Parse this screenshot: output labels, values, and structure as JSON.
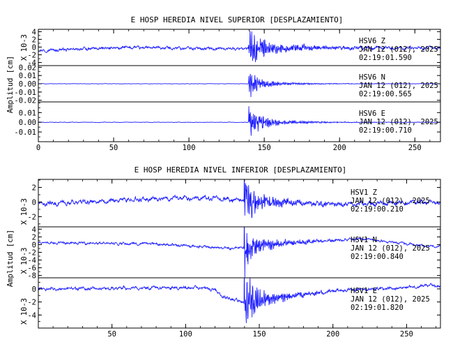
{
  "colors": {
    "trace": "#1f1fff",
    "axis": "#000000",
    "background": "#ffffff"
  },
  "chart_data": [
    {
      "type": "line",
      "title": "E HOSP HEREDIA NIVEL SUPERIOR [DESPLAZAMIENTO]",
      "ylabel": "Amplitud [cm]",
      "x_ticks": [
        0,
        50,
        100,
        150,
        200,
        250
      ],
      "x_range": [
        0,
        267
      ],
      "panels": [
        {
          "name": "Z",
          "scale_label": "X 10-3",
          "ylim": [
            -4.8,
            4.6
          ],
          "y_ticks": [
            4,
            2,
            0,
            -2,
            -4
          ],
          "y_tick_labels": [
            "4",
            "2",
            "0",
            "-2",
            "-4"
          ],
          "info": [
            "HSV6   Z",
            "JAN 12 (012), 2025",
            "02:19:01.590"
          ],
          "trace": {
            "baseline": -0.3,
            "noise": 0.55,
            "peak": 3.8,
            "onset": 139.5,
            "decay": 5,
            "coda": 0.7,
            "coda_decay": 30,
            "drift": [
              [
                0,
                -0.6
              ],
              [
                60,
                0.2
              ],
              [
                120,
                -0.1
              ],
              [
                200,
                0.1
              ],
              [
                267,
                0.1
              ]
            ]
          }
        },
        {
          "name": "N",
          "scale_label": "",
          "ylim": [
            -0.022,
            0.022
          ],
          "y_ticks": [
            0.02,
            0.01,
            0.0,
            -0.01,
            -0.02
          ],
          "y_tick_labels": [
            "0.02",
            "0.01",
            "0.00",
            "-0.01",
            "-0.02"
          ],
          "info": [
            "HSV6   N",
            "JAN 12 (012), 2025",
            "02:19:00.565"
          ],
          "trace": {
            "baseline": 0.0,
            "noise": 0.0004,
            "peak": 0.018,
            "onset": 139.5,
            "decay": 6,
            "coda": 0.2,
            "coda_decay": 30,
            "drift": [
              [
                0,
                0
              ],
              [
                267,
                0
              ]
            ]
          }
        },
        {
          "name": "E",
          "scale_label": "",
          "ylim": [
            -0.02,
            0.021
          ],
          "y_ticks": [
            0.01,
            0.0,
            -0.01
          ],
          "y_tick_labels": [
            "0.01",
            "0.00",
            "-0.01"
          ],
          "info": [
            "HSV6   E",
            "JAN 12 (012), 2025",
            "02:19:00.710"
          ],
          "trace": {
            "baseline": 0.0,
            "noise": 0.0004,
            "peak": 0.017,
            "onset": 139.5,
            "decay": 7,
            "coda": 0.25,
            "coda_decay": 30,
            "drift": [
              [
                0,
                0
              ],
              [
                267,
                0
              ]
            ]
          }
        }
      ]
    },
    {
      "type": "line",
      "title": "E HOSP HEREDIA NIVEL INFERIOR [DESPLAZAMIENTO]",
      "ylabel": "Amplitud [cm]",
      "x_ticks": [
        50,
        100,
        150,
        200,
        250
      ],
      "x_range": [
        0,
        273
      ],
      "panels": [
        {
          "name": "Z",
          "scale_label": "X 10-3",
          "ylim": [
            -3.4,
            3.1
          ],
          "y_ticks": [
            2,
            0,
            -2
          ],
          "y_tick_labels": [
            "2",
            "0",
            "-2"
          ],
          "info": [
            "HSV1   Z",
            "JAN 12 (012), 2025",
            "02:19:00.210"
          ],
          "trace": {
            "baseline": 0.0,
            "noise": 0.45,
            "peak": 3.0,
            "onset": 139.5,
            "decay": 5,
            "coda": 0.5,
            "coda_decay": 25,
            "drift": [
              [
                0,
                -0.3
              ],
              [
                60,
                0.3
              ],
              [
                110,
                0.6
              ],
              [
                140,
                0.2
              ],
              [
                200,
                -0.3
              ],
              [
                273,
                0
              ]
            ]
          }
        },
        {
          "name": "N",
          "scale_label": "X 10-3",
          "ylim": [
            -8.6,
            4.6
          ],
          "y_ticks": [
            4,
            2,
            0,
            -2,
            -4,
            -6,
            -8
          ],
          "y_tick_labels": [
            "4",
            "2",
            "0",
            "-2",
            "-4",
            "-6",
            "-8"
          ],
          "info": [
            "HSV1   N",
            "JAN 12 (012), 2025",
            "02:19:00.840"
          ],
          "trace": {
            "baseline": 0.0,
            "noise": 0.5,
            "peak": 7.5,
            "onset": 139.5,
            "decay": 3,
            "coda": 0.35,
            "coda_decay": 25,
            "drift": [
              [
                0,
                0.5
              ],
              [
                80,
                0.2
              ],
              [
                130,
                -1.0
              ],
              [
                170,
                0.5
              ],
              [
                220,
                1.5
              ],
              [
                267,
                -0.5
              ],
              [
                273,
                -0.3
              ]
            ]
          }
        },
        {
          "name": "E",
          "scale_label": "X 10-3",
          "ylim": [
            -6.0,
            1.7
          ],
          "y_ticks": [
            0,
            -2,
            -4
          ],
          "y_tick_labels": [
            "0",
            "-2",
            "-4"
          ],
          "info": [
            "HSV1   E",
            "JAN 12 (012), 2025",
            "02:19:01.820"
          ],
          "trace": {
            "baseline": 0.0,
            "noise": 0.35,
            "peak": 5.0,
            "onset": 139.5,
            "decay": 4,
            "coda": 0.5,
            "coda_decay": 20,
            "drift": [
              [
                0,
                0
              ],
              [
                110,
                0.2
              ],
              [
                120,
                -0.2
              ],
              [
                126,
                -1.3
              ],
              [
                140,
                -2.0
              ],
              [
                158,
                -1.5
              ],
              [
                200,
                -0.3
              ],
              [
                250,
                0.2
              ],
              [
                265,
                0.6
              ],
              [
                273,
                0.4
              ]
            ]
          }
        }
      ]
    }
  ]
}
